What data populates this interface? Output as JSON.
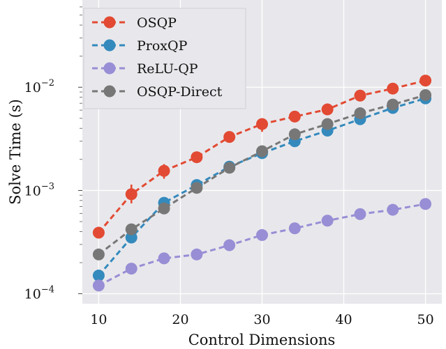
{
  "chart_data": {
    "type": "line",
    "xlabel": "Control Dimensions",
    "ylabel": "Solve Time (s)",
    "yscale": "log",
    "xlim": [
      8,
      52
    ],
    "ylim": [
      8e-05,
      0.07
    ],
    "x_ticks": [
      10,
      20,
      30,
      40,
      50
    ],
    "y_ticks": [
      {
        "value": 0.0001,
        "base": "10",
        "exp": "−4"
      },
      {
        "value": 0.001,
        "base": "10",
        "exp": "−3"
      },
      {
        "value": 0.01,
        "base": "10",
        "exp": "−2"
      }
    ],
    "grid": true,
    "background": "#e8e8ec",
    "legend_position": "top-left",
    "x": [
      10,
      14,
      18,
      22,
      26,
      30,
      34,
      38,
      42,
      46,
      50
    ],
    "series": [
      {
        "name": "OSQP",
        "color": "#e24a33",
        "values": [
          0.00039,
          0.00092,
          0.00155,
          0.0021,
          0.0033,
          0.0044,
          0.0052,
          0.0061,
          0.0083,
          0.0097,
          0.0116
        ],
        "err_low": [
          0.00037,
          0.00075,
          0.0013,
          0.002,
          0.0031,
          0.0037,
          0.0049,
          0.0057,
          0.0079,
          0.0092,
          0.0111
        ],
        "err_high": [
          0.00041,
          0.00114,
          0.0018,
          0.0023,
          0.0035,
          0.005,
          0.0056,
          0.0066,
          0.0088,
          0.0103,
          0.0122
        ]
      },
      {
        "name": "ProxQP",
        "color": "#348abd",
        "values": [
          0.00015,
          0.00035,
          0.00076,
          0.00113,
          0.0017,
          0.0023,
          0.003,
          0.0038,
          0.0049,
          0.0063,
          0.0078
        ],
        "err_low": [
          0.00014,
          0.00033,
          0.00071,
          0.00107,
          0.0016,
          0.0021,
          0.0028,
          0.0034,
          0.0045,
          0.006,
          0.0074
        ],
        "err_high": [
          0.00016,
          0.00038,
          0.00081,
          0.00119,
          0.0018,
          0.0025,
          0.0032,
          0.0041,
          0.0053,
          0.0066,
          0.0082
        ]
      },
      {
        "name": "ReLU-QP",
        "color": "#988ed5",
        "values": [
          0.00012,
          0.000175,
          0.00022,
          0.00024,
          0.000295,
          0.00037,
          0.00043,
          0.00051,
          0.00059,
          0.00065,
          0.00074
        ],
        "err_low": [
          0.000115,
          0.00017,
          0.000213,
          0.000233,
          0.000287,
          0.00036,
          0.00042,
          0.0005,
          0.00057,
          0.00063,
          0.00072
        ],
        "err_high": [
          0.000125,
          0.00018,
          0.000227,
          0.000247,
          0.000303,
          0.00038,
          0.00044,
          0.00052,
          0.00061,
          0.00067,
          0.00076
        ]
      },
      {
        "name": "OSQP-Direct",
        "color": "#777777",
        "values": [
          0.00024,
          0.00042,
          0.00067,
          0.00106,
          0.00166,
          0.0024,
          0.0035,
          0.0044,
          0.0056,
          0.0068,
          0.0084
        ],
        "err_low": [
          0.00023,
          0.0004,
          0.00064,
          0.00101,
          0.00158,
          0.00228,
          0.0033,
          0.0042,
          0.0053,
          0.0065,
          0.008
        ],
        "err_high": [
          0.00025,
          0.00044,
          0.0007,
          0.00111,
          0.00174,
          0.00252,
          0.0037,
          0.0046,
          0.0059,
          0.0071,
          0.0088
        ]
      }
    ]
  }
}
